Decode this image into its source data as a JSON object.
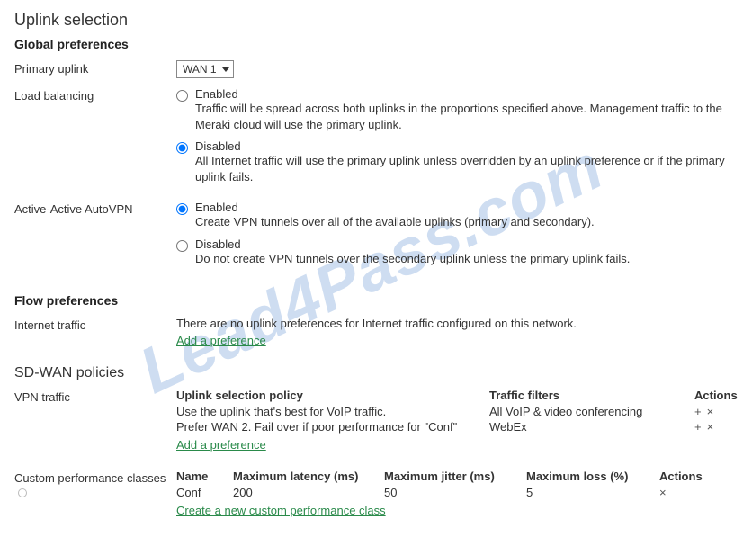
{
  "watermark": "Lead4Pass.com",
  "uplink": {
    "title": "Uplink selection",
    "global": {
      "title": "Global preferences",
      "primary_uplink": {
        "label": "Primary uplink",
        "value": "WAN 1"
      },
      "load_balancing": {
        "label": "Load balancing",
        "selected": "disabled",
        "enabled": {
          "label": "Enabled",
          "desc": "Traffic will be spread across both uplinks in the proportions specified above. Management traffic to the Meraki cloud will use the primary uplink."
        },
        "disabled": {
          "label": "Disabled",
          "desc": "All Internet traffic will use the primary uplink unless overridden by an uplink preference or if the primary uplink fails."
        }
      },
      "active_active": {
        "label": "Active-Active AutoVPN",
        "selected": "enabled",
        "enabled": {
          "label": "Enabled",
          "desc": "Create VPN tunnels over all of the available uplinks (primary and secondary)."
        },
        "disabled": {
          "label": "Disabled",
          "desc": "Do not create VPN tunnels over the secondary uplink unless the primary uplink fails."
        }
      }
    },
    "flow": {
      "title": "Flow preferences",
      "internet_traffic": {
        "label": "Internet traffic",
        "text": "There are no uplink preferences for Internet traffic configured on this network.",
        "add_link": "Add a preference"
      }
    },
    "sdwan": {
      "title": "SD-WAN policies",
      "vpn_traffic": {
        "label": "VPN traffic",
        "headers": {
          "policy": "Uplink selection policy",
          "filters": "Traffic filters",
          "actions": "Actions"
        },
        "rows": [
          {
            "policy": "Use the uplink that's best for VoIP traffic.",
            "filter": "All VoIP & video conferencing"
          },
          {
            "policy": "Prefer WAN 2. Fail over if poor performance for \"Conf\"",
            "filter": "WebEx"
          }
        ],
        "add_link": "Add a preference"
      },
      "custom_perf": {
        "label": "Custom performance classes",
        "headers": {
          "name": "Name",
          "latency": "Maximum latency (ms)",
          "jitter": "Maximum jitter (ms)",
          "loss": "Maximum loss (%)",
          "actions": "Actions"
        },
        "rows": [
          {
            "name": "Conf",
            "latency": "200",
            "jitter": "50",
            "loss": "5"
          }
        ],
        "create_link": "Create a new custom performance class"
      }
    }
  },
  "colors": {
    "link_green": "#2a8a4a",
    "watermark_blue": "rgba(60,120,200,0.25)",
    "text": "#333333"
  }
}
